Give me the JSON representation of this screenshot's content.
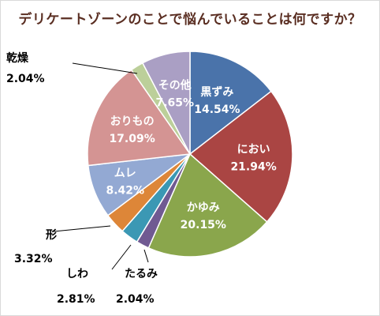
{
  "chart_data": {
    "type": "pie",
    "title": "デリケートゾーンのことで悩んでいることは何ですか？",
    "slices": [
      {
        "label": "黒ずみ",
        "value": 14.54,
        "display": "14.54%",
        "color": "#4a73aa"
      },
      {
        "label": "におい",
        "value": 21.94,
        "display": "21.94%",
        "color": "#aa4543"
      },
      {
        "label": "かゆみ",
        "value": 20.15,
        "display": "20.15%",
        "color": "#8aa64c"
      },
      {
        "label": "たるみ",
        "value": 2.04,
        "display": "2.04%",
        "color": "#705a92"
      },
      {
        "label": "しわ",
        "value": 2.81,
        "display": "2.81%",
        "color": "#3b98b4"
      },
      {
        "label": "形",
        "value": 3.32,
        "display": "3.32%",
        "color": "#dd8638"
      },
      {
        "label": "ムレ",
        "value": 8.42,
        "display": "8.42%",
        "color": "#93a9d3"
      },
      {
        "label": "おりもの",
        "value": 17.09,
        "display": "17.09%",
        "color": "#d49493"
      },
      {
        "label": "乾燥",
        "value": 2.04,
        "display": "2.04%",
        "color": "#bccf9a"
      },
      {
        "label": "その他",
        "value": 7.65,
        "display": "7.65%",
        "color": "#aa9fc4"
      }
    ]
  }
}
